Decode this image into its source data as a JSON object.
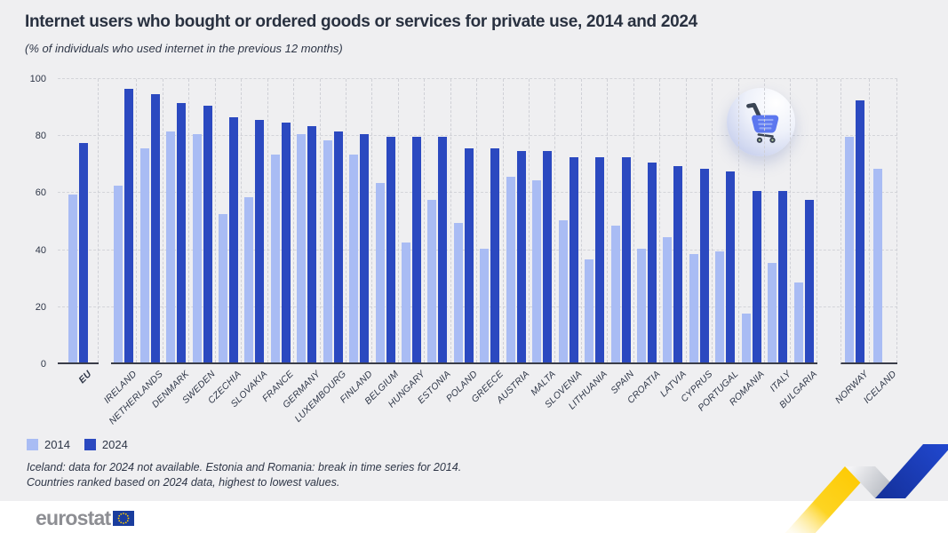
{
  "header": {
    "title": "Internet users who bought or ordered goods or services for private use, 2014 and 2024",
    "subtitle": "(% of individuals who used internet in the previous 12 months)"
  },
  "chart_data": {
    "type": "bar",
    "title": "Internet users who bought or ordered goods or services for private use, 2014 and 2024",
    "subtitle": "(% of individuals who used internet in the previous 12 months)",
    "unit": "%",
    "ylim": [
      0,
      100
    ],
    "yticks": [
      0,
      20,
      40,
      60,
      80,
      100
    ],
    "grid": true,
    "legend_position": "bottom-left",
    "emphasized_category": "EU",
    "group_ranges": {
      "eu": [
        0,
        0
      ],
      "members": [
        1,
        27
      ],
      "efta": [
        28,
        29
      ]
    },
    "categories": [
      "EU",
      "IRELAND",
      "NETHERLANDS",
      "DENMARK",
      "SWEDEN",
      "CZECHIA",
      "SLOVAKIA",
      "FRANCE",
      "GERMANY",
      "LUXEMBOURG",
      "FINLAND",
      "BELGIUM",
      "HUNGARY",
      "ESTONIA",
      "POLAND",
      "GREECE",
      "AUSTRIA",
      "MALTA",
      "SLOVENIA",
      "LITHUANIA",
      "SPAIN",
      "CROATIA",
      "LATVIA",
      "CYPRUS",
      "PORTUGAL",
      "ROMANIA",
      "ITALY",
      "BULGARIA",
      "NORWAY",
      "ICELAND"
    ],
    "series": [
      {
        "name": "2014",
        "color": "#a9bcf4",
        "values": [
          59,
          62,
          75,
          81,
          80,
          52,
          58,
          73,
          80,
          78,
          73,
          63,
          42,
          57,
          49,
          40,
          65,
          64,
          50,
          36,
          48,
          40,
          44,
          38,
          39,
          17,
          35,
          28,
          79,
          68
        ]
      },
      {
        "name": "2024",
        "color": "#2b49c0",
        "values": [
          77,
          96,
          94,
          91,
          90,
          86,
          85,
          84,
          83,
          81,
          80,
          79,
          79,
          79,
          75,
          75,
          74,
          74,
          72,
          72,
          72,
          70,
          69,
          68,
          67,
          60,
          60,
          57,
          92,
          null
        ]
      }
    ]
  },
  "legend": {
    "items": [
      {
        "label": "2014"
      },
      {
        "label": "2024"
      }
    ]
  },
  "footnotes": {
    "line1": "Iceland: data for 2024 not available. Estonia and Romania: break in time series for 2014.",
    "line2": "Countries ranked based on 2024 data, highest to lowest values."
  },
  "branding": {
    "logo_text": "eurostat"
  },
  "icons": {
    "cart": "shopping-cart-icon",
    "ribbon": "eurostat-zigzag-graphic",
    "flag": "eu-flag-icon"
  },
  "colors": {
    "background": "#efeff1",
    "bar_2014": "#a9bcf4",
    "bar_2024": "#2b49c0",
    "text": "#293140",
    "gridline": "#d3d4d9",
    "ribbon_yellow": "#fdc900",
    "ribbon_blue": "#2148d0",
    "logo_gray": "#8d8e93"
  }
}
